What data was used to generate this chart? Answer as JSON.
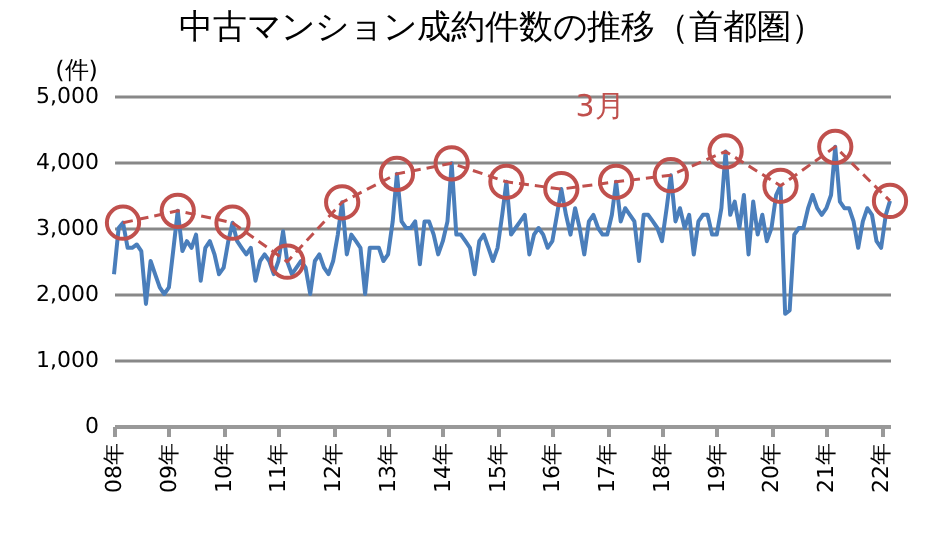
{
  "chart_data": {
    "type": "line",
    "title": "中古マンション成約件数の推移（首都圏）",
    "ylabel": "(件)",
    "x": [
      "2008-01",
      "2008-02",
      "2008-03",
      "2008-04",
      "2008-05",
      "2008-06",
      "2008-07",
      "2008-08",
      "2008-09",
      "2008-10",
      "2008-11",
      "2008-12",
      "2009-01",
      "2009-02",
      "2009-03",
      "2009-04",
      "2009-05",
      "2009-06",
      "2009-07",
      "2009-08",
      "2009-09",
      "2009-10",
      "2009-11",
      "2009-12",
      "2010-01",
      "2010-02",
      "2010-03",
      "2010-04",
      "2010-05",
      "2010-06",
      "2010-07",
      "2010-08",
      "2010-09",
      "2010-10",
      "2010-11",
      "2010-12",
      "2011-01",
      "2011-02",
      "2011-03",
      "2011-04",
      "2011-05",
      "2011-06",
      "2011-07",
      "2011-08",
      "2011-09",
      "2011-10",
      "2011-11",
      "2011-12",
      "2012-01",
      "2012-02",
      "2012-03",
      "2012-04",
      "2012-05",
      "2012-06",
      "2012-07",
      "2012-08",
      "2012-09",
      "2012-10",
      "2012-11",
      "2012-12",
      "2013-01",
      "2013-02",
      "2013-03",
      "2013-04",
      "2013-05",
      "2013-06",
      "2013-07",
      "2013-08",
      "2013-09",
      "2013-10",
      "2013-11",
      "2013-12",
      "2014-01",
      "2014-02",
      "2014-03",
      "2014-04",
      "2014-05",
      "2014-06",
      "2014-07",
      "2014-08",
      "2014-09",
      "2014-10",
      "2014-11",
      "2014-12",
      "2015-01",
      "2015-02",
      "2015-03",
      "2015-04",
      "2015-05",
      "2015-06",
      "2015-07",
      "2015-08",
      "2015-09",
      "2015-10",
      "2015-11",
      "2015-12",
      "2016-01",
      "2016-02",
      "2016-03",
      "2016-04",
      "2016-05",
      "2016-06",
      "2016-07",
      "2016-08",
      "2016-09",
      "2016-10",
      "2016-11",
      "2016-12",
      "2017-01",
      "2017-02",
      "2017-03",
      "2017-04",
      "2017-05",
      "2017-06",
      "2017-07",
      "2017-08",
      "2017-09",
      "2017-10",
      "2017-11",
      "2017-12",
      "2018-01",
      "2018-02",
      "2018-03",
      "2018-04",
      "2018-05",
      "2018-06",
      "2018-07",
      "2018-08",
      "2018-09",
      "2018-10",
      "2018-11",
      "2018-12",
      "2019-01",
      "2019-02",
      "2019-03",
      "2019-04",
      "2019-05",
      "2019-06",
      "2019-07",
      "2019-08",
      "2019-09",
      "2019-10",
      "2019-11",
      "2019-12",
      "2020-01",
      "2020-02",
      "2020-03",
      "2020-04",
      "2020-05",
      "2020-06",
      "2020-07",
      "2020-08",
      "2020-09",
      "2020-10",
      "2020-11",
      "2020-12",
      "2021-01",
      "2021-02",
      "2021-03",
      "2021-04",
      "2021-05",
      "2021-06",
      "2021-07",
      "2021-08",
      "2021-09",
      "2021-10",
      "2021-11",
      "2021-12",
      "2022-01",
      "2022-02",
      "2022-03"
    ],
    "series": [
      {
        "color": "#4a7ebb",
        "marker": "none",
        "line_style": "solid",
        "values": [
          2300,
          3000,
          3080,
          2700,
          2700,
          2750,
          2650,
          1850,
          2500,
          2300,
          2100,
          2000,
          2100,
          2700,
          3260,
          2650,
          2800,
          2700,
          2900,
          2200,
          2700,
          2800,
          2600,
          2300,
          2400,
          2800,
          3080,
          2800,
          2700,
          2600,
          2700,
          2200,
          2500,
          2600,
          2500,
          2300,
          2500,
          2950,
          2490,
          2300,
          2400,
          2500,
          2400,
          2000,
          2500,
          2600,
          2400,
          2300,
          2500,
          2900,
          3390,
          2600,
          2900,
          2800,
          2700,
          2000,
          2700,
          2700,
          2700,
          2500,
          2600,
          3100,
          3820,
          3100,
          3000,
          3000,
          3100,
          2450,
          3100,
          3100,
          2900,
          2600,
          2800,
          3100,
          3980,
          2900,
          2900,
          2800,
          2700,
          2300,
          2800,
          2900,
          2700,
          2500,
          2700,
          3200,
          3700,
          2900,
          3000,
          3100,
          3200,
          2600,
          2900,
          3000,
          2900,
          2700,
          2800,
          3200,
          3590,
          3200,
          2900,
          3300,
          3000,
          2600,
          3100,
          3200,
          3000,
          2900,
          2900,
          3200,
          3700,
          3100,
          3300,
          3200,
          3100,
          2500,
          3200,
          3200,
          3100,
          3000,
          2800,
          3300,
          3800,
          3100,
          3300,
          3000,
          3200,
          2600,
          3100,
          3200,
          3200,
          2900,
          2900,
          3300,
          4160,
          3200,
          3400,
          3000,
          3500,
          2600,
          3400,
          2900,
          3200,
          2800,
          3000,
          3500,
          3640,
          1700,
          1750,
          2900,
          3000,
          3000,
          3300,
          3500,
          3300,
          3200,
          3300,
          3500,
          4230,
          3400,
          3300,
          3300,
          3100,
          2700,
          3100,
          3300,
          3200,
          2800,
          2700,
          3200,
          3410
        ]
      },
      {
        "name": "3月",
        "color": "#c0504d",
        "marker": "circle",
        "line_style": "dashed",
        "x": [
          "2008-03",
          "2009-03",
          "2010-03",
          "2011-03",
          "2012-03",
          "2013-03",
          "2014-03",
          "2015-03",
          "2016-03",
          "2017-03",
          "2018-03",
          "2019-03",
          "2020-03",
          "2021-03",
          "2022-03"
        ],
        "values": [
          3080,
          3260,
          3080,
          2490,
          3390,
          3820,
          3980,
          3700,
          3590,
          3700,
          3800,
          4160,
          3640,
          4230,
          3410
        ]
      }
    ],
    "xlim": [
      "2008-01",
      "2022-03"
    ],
    "xticks": [
      {
        "value": "2008-01",
        "label": "08年"
      },
      {
        "value": "2009-01",
        "label": "09年"
      },
      {
        "value": "2010-01",
        "label": "10年"
      },
      {
        "value": "2011-01",
        "label": "11年"
      },
      {
        "value": "2012-01",
        "label": "12年"
      },
      {
        "value": "2013-01",
        "label": "13年"
      },
      {
        "value": "2014-01",
        "label": "14年"
      },
      {
        "value": "2015-01",
        "label": "15年"
      },
      {
        "value": "2016-01",
        "label": "16年"
      },
      {
        "value": "2017-01",
        "label": "17年"
      },
      {
        "value": "2018-01",
        "label": "18年"
      },
      {
        "value": "2019-01",
        "label": "19年"
      },
      {
        "value": "2020-01",
        "label": "20年"
      },
      {
        "value": "2021-01",
        "label": "21年"
      },
      {
        "value": "2022-01",
        "label": "22年"
      }
    ],
    "ylim": [
      0,
      5000
    ],
    "yticks": [
      0,
      {
        "value": 1000,
        "label": "1,000"
      },
      {
        "value": 2000,
        "label": "2,000"
      },
      {
        "value": 3000,
        "label": "3,000"
      },
      {
        "value": 4000,
        "label": "4,000"
      },
      {
        "value": 5000,
        "label": "5,000"
      }
    ],
    "grid": "y"
  }
}
